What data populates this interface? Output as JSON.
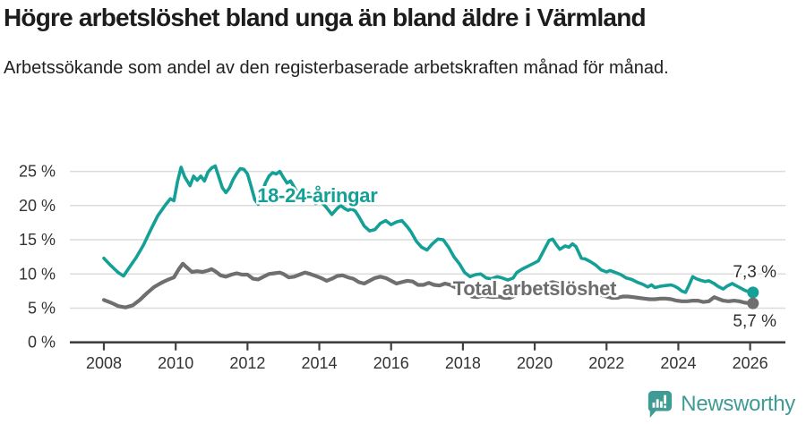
{
  "header": {
    "title": "Högre arbetslöshet bland unga än bland äldre i Värmland",
    "subtitle": "Arbetssökande som andel av den registerbaserade arbetskraften månad för månad."
  },
  "footer": {
    "brand": "Newsworthy",
    "logo_icon": "bar-chart-speech-bubble-icon",
    "brand_color": "#3f9b93"
  },
  "chart_data": {
    "type": "line",
    "title": "Högre arbetslöshet bland unga än bland äldre i Värmland",
    "subtitle": "Arbetssökande som andel av den registerbaserade arbetskraften månad för månad.",
    "legend": "direct-labels",
    "grid": "horizontal",
    "x_axis": {
      "ticks": [
        2008,
        2010,
        2012,
        2014,
        2016,
        2018,
        2020,
        2022,
        2024,
        2026
      ],
      "range": [
        2007.05,
        2026.95
      ]
    },
    "y_axis": {
      "ticks": [
        0,
        5,
        10,
        15,
        20,
        25
      ],
      "tick_labels": [
        "0 %",
        "5 %",
        "10 %",
        "15 %",
        "20 %",
        "25 %"
      ],
      "suffix": " %",
      "range": [
        0,
        27.8
      ]
    },
    "style": {
      "grid_color": "#dcdcdc",
      "axis_color": "#404040",
      "tick_label_color": "#333333",
      "value_label_color": "#2e2e2e",
      "background": "#ffffff"
    },
    "series": [
      {
        "name": "18-24-åringar",
        "slug": "18-24-aringar",
        "color": "#14a096",
        "label_color": "#14a096",
        "width": 3.6,
        "label": {
          "text": "18-24-åringar",
          "x": 2012.27,
          "y": 20.5
        },
        "end_label": {
          "text": "7,3 %",
          "position": "above"
        },
        "end_value": 7.3,
        "points": [
          [
            2008.0,
            12.3
          ],
          [
            2008.2,
            11.2
          ],
          [
            2008.4,
            10.2
          ],
          [
            2008.55,
            9.7
          ],
          [
            2008.7,
            10.9
          ],
          [
            2008.9,
            12.4
          ],
          [
            2009.1,
            14.2
          ],
          [
            2009.3,
            16.4
          ],
          [
            2009.5,
            18.5
          ],
          [
            2009.7,
            20.0
          ],
          [
            2009.85,
            21.0
          ],
          [
            2009.95,
            20.7
          ],
          [
            2010.05,
            23.5
          ],
          [
            2010.15,
            25.6
          ],
          [
            2010.25,
            24.2
          ],
          [
            2010.4,
            22.9
          ],
          [
            2010.5,
            24.3
          ],
          [
            2010.6,
            23.7
          ],
          [
            2010.7,
            24.3
          ],
          [
            2010.8,
            23.6
          ],
          [
            2010.9,
            24.9
          ],
          [
            2011.0,
            25.5
          ],
          [
            2011.1,
            25.8
          ],
          [
            2011.2,
            24.2
          ],
          [
            2011.3,
            22.6
          ],
          [
            2011.4,
            21.9
          ],
          [
            2011.5,
            22.6
          ],
          [
            2011.6,
            23.8
          ],
          [
            2011.7,
            24.7
          ],
          [
            2011.8,
            25.4
          ],
          [
            2011.9,
            25.3
          ],
          [
            2012.0,
            24.6
          ],
          [
            2012.1,
            22.8
          ],
          [
            2012.2,
            20.9
          ],
          [
            2012.3,
            20.2
          ],
          [
            2012.4,
            21.8
          ],
          [
            2012.5,
            23.3
          ],
          [
            2012.6,
            24.3
          ],
          [
            2012.7,
            24.8
          ],
          [
            2012.8,
            24.6
          ],
          [
            2012.9,
            25.0
          ],
          [
            2013.0,
            24.1
          ],
          [
            2013.1,
            23.3
          ],
          [
            2013.2,
            23.6
          ],
          [
            2013.3,
            22.7
          ],
          [
            2013.4,
            21.8
          ],
          [
            2013.5,
            21.1
          ],
          [
            2013.6,
            21.5
          ],
          [
            2013.7,
            21.8
          ],
          [
            2013.8,
            21.1
          ],
          [
            2013.9,
            20.3
          ],
          [
            2014.0,
            20.6
          ],
          [
            2014.1,
            20.3
          ],
          [
            2014.2,
            19.7
          ],
          [
            2014.35,
            18.7
          ],
          [
            2014.5,
            19.6
          ],
          [
            2014.6,
            20.0
          ],
          [
            2014.7,
            19.6
          ],
          [
            2014.8,
            19.3
          ],
          [
            2014.9,
            19.5
          ],
          [
            2015.0,
            19.2
          ],
          [
            2015.1,
            18.4
          ],
          [
            2015.25,
            17.0
          ],
          [
            2015.4,
            16.3
          ],
          [
            2015.55,
            16.5
          ],
          [
            2015.7,
            17.4
          ],
          [
            2015.85,
            17.8
          ],
          [
            2016.0,
            17.2
          ],
          [
            2016.15,
            17.6
          ],
          [
            2016.3,
            17.8
          ],
          [
            2016.45,
            16.9
          ],
          [
            2016.55,
            16.2
          ],
          [
            2016.7,
            14.8
          ],
          [
            2016.85,
            13.9
          ],
          [
            2017.0,
            13.5
          ],
          [
            2017.15,
            14.4
          ],
          [
            2017.3,
            15.1
          ],
          [
            2017.45,
            15.0
          ],
          [
            2017.6,
            13.9
          ],
          [
            2017.75,
            12.5
          ],
          [
            2017.9,
            11.5
          ],
          [
            2018.05,
            10.2
          ],
          [
            2018.2,
            9.6
          ],
          [
            2018.35,
            9.9
          ],
          [
            2018.5,
            10.0
          ],
          [
            2018.65,
            9.4
          ],
          [
            2018.8,
            9.3
          ],
          [
            2018.95,
            9.6
          ],
          [
            2019.1,
            9.4
          ],
          [
            2019.25,
            9.1
          ],
          [
            2019.4,
            9.4
          ],
          [
            2019.5,
            10.2
          ],
          [
            2019.65,
            10.7
          ],
          [
            2019.8,
            11.1
          ],
          [
            2019.95,
            11.5
          ],
          [
            2020.1,
            11.9
          ],
          [
            2020.25,
            13.4
          ],
          [
            2020.4,
            14.9
          ],
          [
            2020.5,
            15.1
          ],
          [
            2020.6,
            14.3
          ],
          [
            2020.7,
            13.6
          ],
          [
            2020.85,
            14.1
          ],
          [
            2020.95,
            13.9
          ],
          [
            2021.05,
            14.4
          ],
          [
            2021.15,
            14.0
          ],
          [
            2021.3,
            12.3
          ],
          [
            2021.4,
            12.2
          ],
          [
            2021.55,
            11.8
          ],
          [
            2021.7,
            11.3
          ],
          [
            2021.85,
            10.6
          ],
          [
            2022.0,
            10.3
          ],
          [
            2022.1,
            10.5
          ],
          [
            2022.25,
            10.2
          ],
          [
            2022.4,
            9.9
          ],
          [
            2022.55,
            9.4
          ],
          [
            2022.7,
            9.2
          ],
          [
            2022.85,
            8.8
          ],
          [
            2023.0,
            8.5
          ],
          [
            2023.15,
            8.1
          ],
          [
            2023.25,
            8.4
          ],
          [
            2023.35,
            8.0
          ],
          [
            2023.5,
            8.2
          ],
          [
            2023.65,
            8.3
          ],
          [
            2023.8,
            8.4
          ],
          [
            2023.9,
            8.2
          ],
          [
            2024.0,
            7.9
          ],
          [
            2024.1,
            7.5
          ],
          [
            2024.2,
            7.3
          ],
          [
            2024.3,
            8.4
          ],
          [
            2024.4,
            9.6
          ],
          [
            2024.5,
            9.3
          ],
          [
            2024.6,
            9.1
          ],
          [
            2024.75,
            8.9
          ],
          [
            2024.85,
            9.0
          ],
          [
            2025.0,
            8.6
          ],
          [
            2025.1,
            8.2
          ],
          [
            2025.25,
            7.8
          ],
          [
            2025.35,
            8.2
          ],
          [
            2025.5,
            8.6
          ],
          [
            2025.6,
            8.3
          ],
          [
            2025.75,
            7.9
          ],
          [
            2025.85,
            7.6
          ],
          [
            2025.95,
            7.4
          ],
          [
            2026.08,
            7.3
          ]
        ]
      },
      {
        "name": "Total arbetslöshet",
        "slug": "total-arbetsloshet",
        "color": "#6f6f6f",
        "label_color": "#6d6d6d",
        "width": 4.2,
        "label": {
          "text": "Total arbetslöshet",
          "x": 2017.72,
          "y": 6.9
        },
        "end_label": {
          "text": "5,7 %",
          "position": "below"
        },
        "end_value": 5.7,
        "points": [
          [
            2008.0,
            6.2
          ],
          [
            2008.2,
            5.8
          ],
          [
            2008.4,
            5.3
          ],
          [
            2008.6,
            5.1
          ],
          [
            2008.8,
            5.4
          ],
          [
            2009.0,
            6.2
          ],
          [
            2009.2,
            7.2
          ],
          [
            2009.4,
            8.1
          ],
          [
            2009.6,
            8.7
          ],
          [
            2009.8,
            9.2
          ],
          [
            2009.95,
            9.5
          ],
          [
            2010.1,
            10.8
          ],
          [
            2010.2,
            11.5
          ],
          [
            2010.3,
            11.0
          ],
          [
            2010.45,
            10.3
          ],
          [
            2010.6,
            10.4
          ],
          [
            2010.75,
            10.3
          ],
          [
            2010.9,
            10.5
          ],
          [
            2011.0,
            10.7
          ],
          [
            2011.1,
            10.4
          ],
          [
            2011.25,
            9.8
          ],
          [
            2011.4,
            9.6
          ],
          [
            2011.55,
            9.9
          ],
          [
            2011.7,
            10.1
          ],
          [
            2011.85,
            9.9
          ],
          [
            2012.0,
            9.9
          ],
          [
            2012.15,
            9.3
          ],
          [
            2012.3,
            9.2
          ],
          [
            2012.45,
            9.6
          ],
          [
            2012.6,
            10.0
          ],
          [
            2012.75,
            10.1
          ],
          [
            2012.9,
            10.2
          ],
          [
            2013.0,
            10.0
          ],
          [
            2013.15,
            9.5
          ],
          [
            2013.3,
            9.6
          ],
          [
            2013.45,
            9.9
          ],
          [
            2013.6,
            10.2
          ],
          [
            2013.75,
            10.0
          ],
          [
            2013.9,
            9.7
          ],
          [
            2014.05,
            9.4
          ],
          [
            2014.2,
            9.0
          ],
          [
            2014.35,
            9.3
          ],
          [
            2014.5,
            9.7
          ],
          [
            2014.65,
            9.8
          ],
          [
            2014.8,
            9.5
          ],
          [
            2014.95,
            9.3
          ],
          [
            2015.1,
            8.8
          ],
          [
            2015.25,
            8.6
          ],
          [
            2015.4,
            9.0
          ],
          [
            2015.55,
            9.4
          ],
          [
            2015.7,
            9.6
          ],
          [
            2015.85,
            9.4
          ],
          [
            2016.0,
            9.0
          ],
          [
            2016.15,
            8.6
          ],
          [
            2016.3,
            8.8
          ],
          [
            2016.45,
            9.0
          ],
          [
            2016.6,
            8.9
          ],
          [
            2016.75,
            8.4
          ],
          [
            2016.9,
            8.4
          ],
          [
            2017.05,
            8.7
          ],
          [
            2017.2,
            8.4
          ],
          [
            2017.35,
            8.3
          ],
          [
            2017.5,
            8.6
          ],
          [
            2017.65,
            8.4
          ],
          [
            2017.8,
            8.0
          ],
          [
            2017.95,
            7.6
          ],
          [
            2018.1,
            7.1
          ],
          [
            2018.25,
            6.7
          ],
          [
            2018.4,
            6.6
          ],
          [
            2018.55,
            6.8
          ],
          [
            2018.7,
            6.7
          ],
          [
            2018.85,
            6.6
          ],
          [
            2019.0,
            6.7
          ],
          [
            2019.15,
            6.5
          ],
          [
            2019.3,
            6.5
          ],
          [
            2019.45,
            6.8
          ],
          [
            2019.6,
            7.0
          ],
          [
            2019.75,
            7.0
          ],
          [
            2019.9,
            7.1
          ],
          [
            2020.05,
            7.3
          ],
          [
            2020.2,
            7.9
          ],
          [
            2020.35,
            8.6
          ],
          [
            2020.5,
            8.8
          ],
          [
            2020.65,
            8.6
          ],
          [
            2020.8,
            8.5
          ],
          [
            2020.95,
            8.4
          ],
          [
            2021.1,
            8.2
          ],
          [
            2021.25,
            7.9
          ],
          [
            2021.4,
            7.7
          ],
          [
            2021.55,
            7.5
          ],
          [
            2021.7,
            7.2
          ],
          [
            2021.85,
            6.9
          ],
          [
            2022.0,
            6.7
          ],
          [
            2022.15,
            6.5
          ],
          [
            2022.3,
            6.5
          ],
          [
            2022.45,
            6.7
          ],
          [
            2022.6,
            6.7
          ],
          [
            2022.75,
            6.6
          ],
          [
            2022.9,
            6.5
          ],
          [
            2023.05,
            6.4
          ],
          [
            2023.2,
            6.3
          ],
          [
            2023.35,
            6.3
          ],
          [
            2023.5,
            6.4
          ],
          [
            2023.65,
            6.4
          ],
          [
            2023.8,
            6.3
          ],
          [
            2023.95,
            6.1
          ],
          [
            2024.1,
            6.0
          ],
          [
            2024.25,
            6.0
          ],
          [
            2024.4,
            6.1
          ],
          [
            2024.55,
            6.1
          ],
          [
            2024.7,
            5.9
          ],
          [
            2024.85,
            6.0
          ],
          [
            2025.0,
            6.6
          ],
          [
            2025.1,
            6.4
          ],
          [
            2025.25,
            6.1
          ],
          [
            2025.4,
            6.0
          ],
          [
            2025.55,
            6.1
          ],
          [
            2025.7,
            6.0
          ],
          [
            2025.85,
            5.8
          ],
          [
            2026.08,
            5.7
          ]
        ]
      }
    ]
  }
}
